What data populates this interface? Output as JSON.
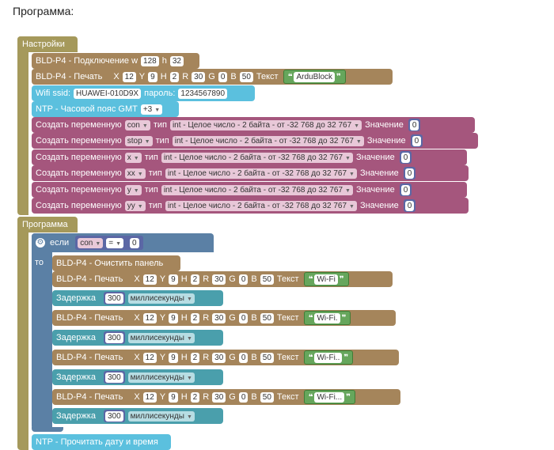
{
  "heading": "Программа:",
  "setup": {
    "label": "Настройки",
    "connect": {
      "label": "BLD-P4 - Подключение w",
      "w": "128",
      "h_label": "h",
      "h": "32"
    },
    "print1": {
      "label": "BLD-P4 - Печать",
      "x_label": "X",
      "x": "12",
      "y_label": "Y",
      "y": "9",
      "h_label": "H",
      "h": "2",
      "r_label": "R",
      "r": "30",
      "g_label": "G",
      "g": "0",
      "b_label": "B",
      "b": "50",
      "text_label": "Текст",
      "text": "ArduBlock"
    },
    "wifi": {
      "ssid_label": "Wifi ssid:",
      "ssid": "HUAWEI-010D9X",
      "pass_label": "пароль:",
      "pass": "1234567890"
    },
    "ntp": {
      "label": "NTP - Часовой пояс GMT",
      "value": "+3"
    },
    "var_label": "Создать переменную",
    "type_label": "тип",
    "value_label": "Значение",
    "var_type": "int - Целое число - 2 байта - от -32 768 до 32 767",
    "vars": [
      {
        "name": "con",
        "value": "0"
      },
      {
        "name": "stop",
        "value": "0"
      },
      {
        "name": "x",
        "value": "0"
      },
      {
        "name": "xx",
        "value": "0"
      },
      {
        "name": "y",
        "value": "0"
      },
      {
        "name": "yy",
        "value": "0"
      }
    ]
  },
  "program": {
    "label": "Программа",
    "if_label": "если",
    "then_label": "то",
    "cond_var": "con",
    "cond_op": "=",
    "cond_value": "0",
    "clear_label": "BLD-P4 - Очистить панель",
    "print_label": "BLD-P4 - Печать",
    "delay_label": "Задержка",
    "delay_value": "300",
    "delay_unit": "миллисекунды",
    "texts": [
      "Wi-Fi",
      "Wi-Fi.",
      "Wi-Fi..",
      "Wi-Fi..."
    ],
    "ntp_read": "NTP - Прочитать дату и время"
  },
  "colors": {
    "setup": "#a5995b",
    "print": "#a5855b",
    "wifi": "#5bc0de",
    "var": "#a5567d",
    "program": "#a5995b",
    "logic": "#5b80a5",
    "delay": "#4a9fac"
  }
}
